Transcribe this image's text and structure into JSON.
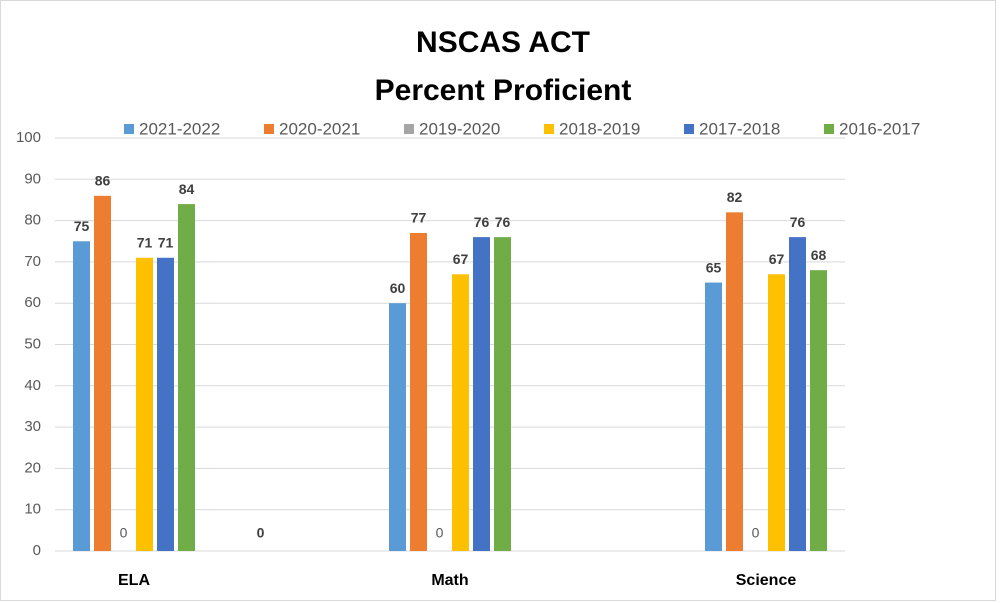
{
  "chart_data": {
    "type": "bar",
    "title": "NSCAS ACT",
    "subtitle": "Percent Proficient",
    "categories": [
      "ELA",
      null,
      "Math",
      null,
      "Science"
    ],
    "series": [
      {
        "name": "2021-2022",
        "color": "#5b9bd5",
        "values": [
          75,
          null,
          60,
          null,
          65
        ]
      },
      {
        "name": "2020-2021",
        "color": "#ed7d31",
        "values": [
          86,
          0,
          77,
          null,
          82
        ]
      },
      {
        "name": "2019-2020",
        "color": "#a5a5a5",
        "values": [
          0,
          null,
          0,
          null,
          0
        ]
      },
      {
        "name": "2018-2019",
        "color": "#ffc000",
        "values": [
          71,
          null,
          67,
          null,
          67
        ]
      },
      {
        "name": "2017-2018",
        "color": "#4472c4",
        "values": [
          71,
          null,
          76,
          null,
          76
        ]
      },
      {
        "name": "2016-2017",
        "color": "#70ad47",
        "values": [
          84,
          null,
          76,
          null,
          68
        ]
      }
    ],
    "ylim": [
      0,
      100
    ],
    "yticks": [
      0,
      10,
      20,
      30,
      40,
      50,
      60,
      70,
      80,
      90,
      100
    ],
    "grid": true,
    "legend": "top"
  }
}
